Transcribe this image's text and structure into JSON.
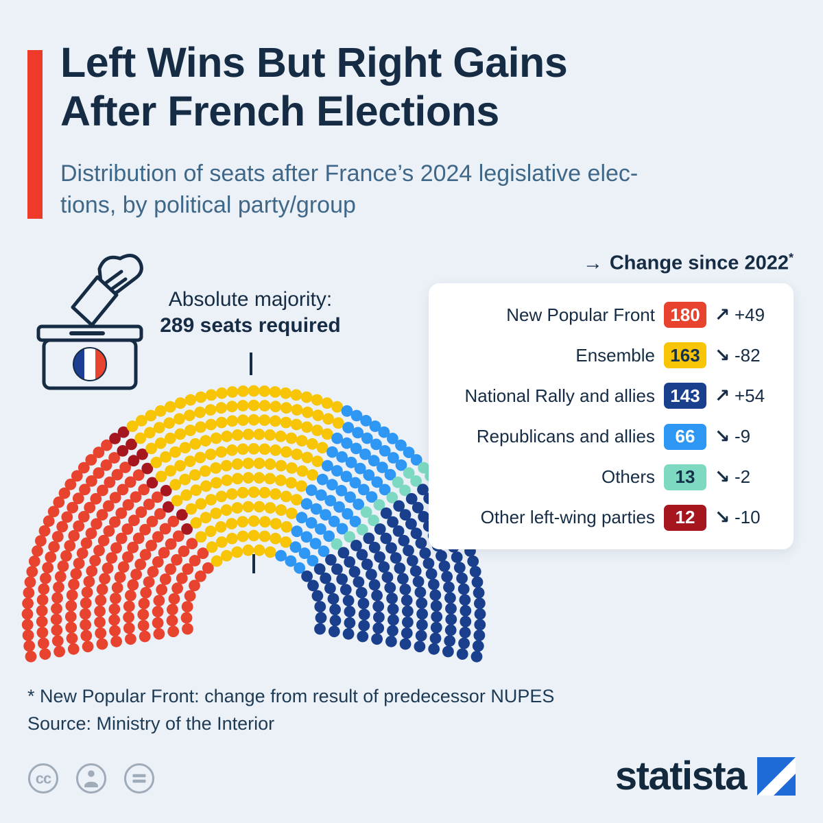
{
  "header": {
    "title_lines": [
      "Left Wins But Right Gains",
      "After French Elections"
    ],
    "subtitle_lines": [
      "Distribution of seats after France’s 2024 legislative elec-",
      "tions, by political party/group"
    ]
  },
  "annotation": {
    "majority_label": "Absolute majority:",
    "majority_value": "289 seats required"
  },
  "legend": {
    "header_arrow": "→",
    "header_label": "Change since 2022",
    "header_asterisk": "*",
    "icons": {
      "up": "↗",
      "down": "↘"
    },
    "position": "right"
  },
  "chart_data": {
    "type": "parliament",
    "title": "Left Wins But Right Gains After French Elections",
    "subtitle": "Distribution of seats after France’s 2024 legislative elections, by political party/group",
    "total_seats": 577,
    "majority_seats": 289,
    "legend_position": "right",
    "hemicycle_order": [
      "New Popular Front",
      "Other left-wing parties",
      "Ensemble",
      "Republicans and allies",
      "Others",
      "National Rally and allies"
    ],
    "parties": [
      {
        "name": "New Popular Front",
        "seats": 180,
        "change": "+49",
        "trend": "up",
        "color": "#e8432e",
        "badge_text": "#ffffff"
      },
      {
        "name": "Ensemble",
        "seats": 163,
        "change": "-82",
        "trend": "down",
        "color": "#f7c505",
        "badge_text": "#15304b"
      },
      {
        "name": "National Rally and allies",
        "seats": 143,
        "change": "+54",
        "trend": "up",
        "color": "#1a3f8c",
        "badge_text": "#ffffff"
      },
      {
        "name": "Republicans and allies",
        "seats": 66,
        "change": "-9",
        "trend": "down",
        "color": "#2e96f3",
        "badge_text": "#ffffff"
      },
      {
        "name": "Others",
        "seats": 13,
        "change": "-2",
        "trend": "down",
        "color": "#7ed9c2",
        "badge_text": "#15304b"
      },
      {
        "name": "Other left-wing parties",
        "seats": 12,
        "change": "-10",
        "trend": "down",
        "color": "#a5161f",
        "badge_text": "#ffffff"
      }
    ]
  },
  "footer": {
    "footnote": "* New Popular Front: change from result of predecessor NUPES",
    "source": "Source: Ministry of the Interior",
    "brand": "statista"
  },
  "colors": {
    "background": "#ecf1f8",
    "accent_red": "#ee3a28",
    "title_navy": "#152c44",
    "subtitle_blue": "#3f6788"
  }
}
